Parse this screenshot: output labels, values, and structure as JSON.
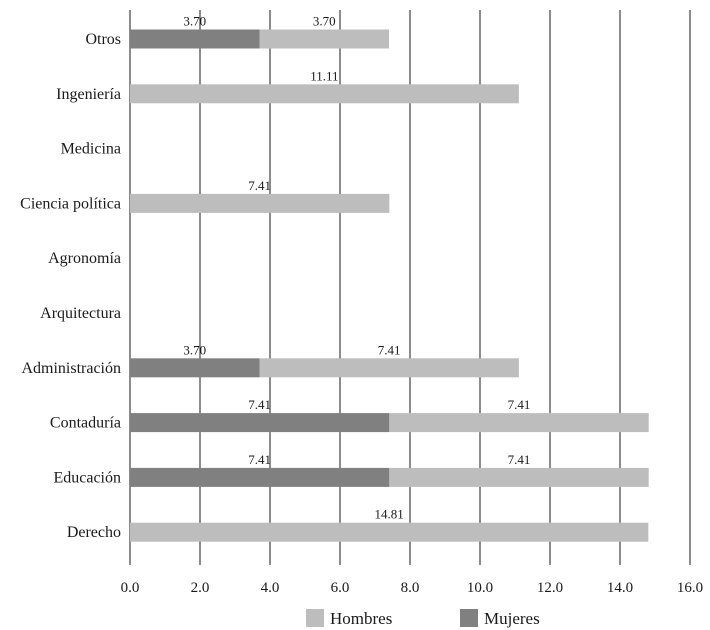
{
  "chart_data": {
    "type": "bar",
    "orientation": "horizontal",
    "stacked": true,
    "categories": [
      "Otros",
      "Ingeniería",
      "Medicina",
      "Ciencia política",
      "Agronomía",
      "Arquitectura",
      "Administración",
      "Contaduría",
      "Educación",
      "Derecho"
    ],
    "series": [
      {
        "name": "Mujeres",
        "color": "#808080",
        "values": [
          3.7,
          0,
          0,
          0,
          0,
          0,
          3.7,
          7.41,
          7.41,
          0
        ],
        "labels": [
          "3.70",
          "",
          "",
          "",
          "",
          "",
          "3.70",
          "7.41",
          "7.41",
          ""
        ]
      },
      {
        "name": "Hombres",
        "color": "#bdbdbd",
        "values": [
          3.7,
          11.11,
          0,
          7.41,
          0,
          0,
          7.41,
          7.41,
          7.41,
          14.81
        ],
        "labels": [
          "3.70",
          "11.11",
          "",
          "7.41",
          "",
          "",
          "7.41",
          "7.41",
          "7.41",
          "14.81"
        ]
      }
    ],
    "x_ticks": [
      "0.0",
      "2.0",
      "4.0",
      "6.0",
      "8.0",
      "10.0",
      "12.0",
      "14.0",
      "16.0"
    ],
    "xlim": [
      0,
      16
    ],
    "grid": "vertical",
    "legend_position": "bottom",
    "legend": [
      {
        "name": "Hombres",
        "color": "#bdbdbd"
      },
      {
        "name": "Mujeres",
        "color": "#808080"
      }
    ]
  }
}
